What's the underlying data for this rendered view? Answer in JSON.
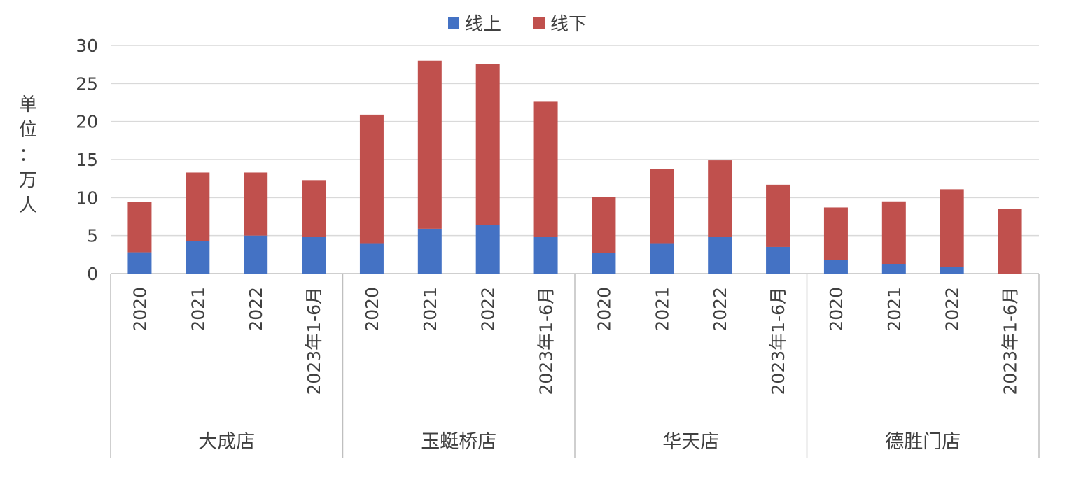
{
  "chart_data": {
    "type": "bar",
    "stacked": true,
    "ylabel_chars": [
      "单",
      "位",
      "：",
      "万",
      "人"
    ],
    "ylim": [
      0,
      30
    ],
    "yticks": [
      0,
      5,
      10,
      15,
      20,
      25,
      30
    ],
    "grid": true,
    "legend_position": "top-center",
    "groups": [
      {
        "name": "大成店",
        "categories": [
          "2020",
          "2021",
          "2022",
          "2023年1-6月"
        ]
      },
      {
        "name": "玉蜓桥店",
        "categories": [
          "2020",
          "2021",
          "2022",
          "2023年1-6月"
        ]
      },
      {
        "name": "华天店",
        "categories": [
          "2020",
          "2021",
          "2022",
          "2023年1-6月"
        ]
      },
      {
        "name": "德胜门店",
        "categories": [
          "2020",
          "2021",
          "2022",
          "2023年1-6月"
        ]
      }
    ],
    "series": [
      {
        "name": "线上",
        "color": "#4472c4",
        "values": [
          2.8,
          4.3,
          5.0,
          4.8,
          4.0,
          5.9,
          6.4,
          4.8,
          2.7,
          4.0,
          4.8,
          3.5,
          1.8,
          1.2,
          0.9,
          0.0
        ]
      },
      {
        "name": "线下",
        "color": "#c0504d",
        "values": [
          6.6,
          9.0,
          8.3,
          7.5,
          16.9,
          22.1,
          21.2,
          17.8,
          7.4,
          9.8,
          10.1,
          8.2,
          6.9,
          8.3,
          10.2,
          8.5
        ]
      }
    ]
  }
}
